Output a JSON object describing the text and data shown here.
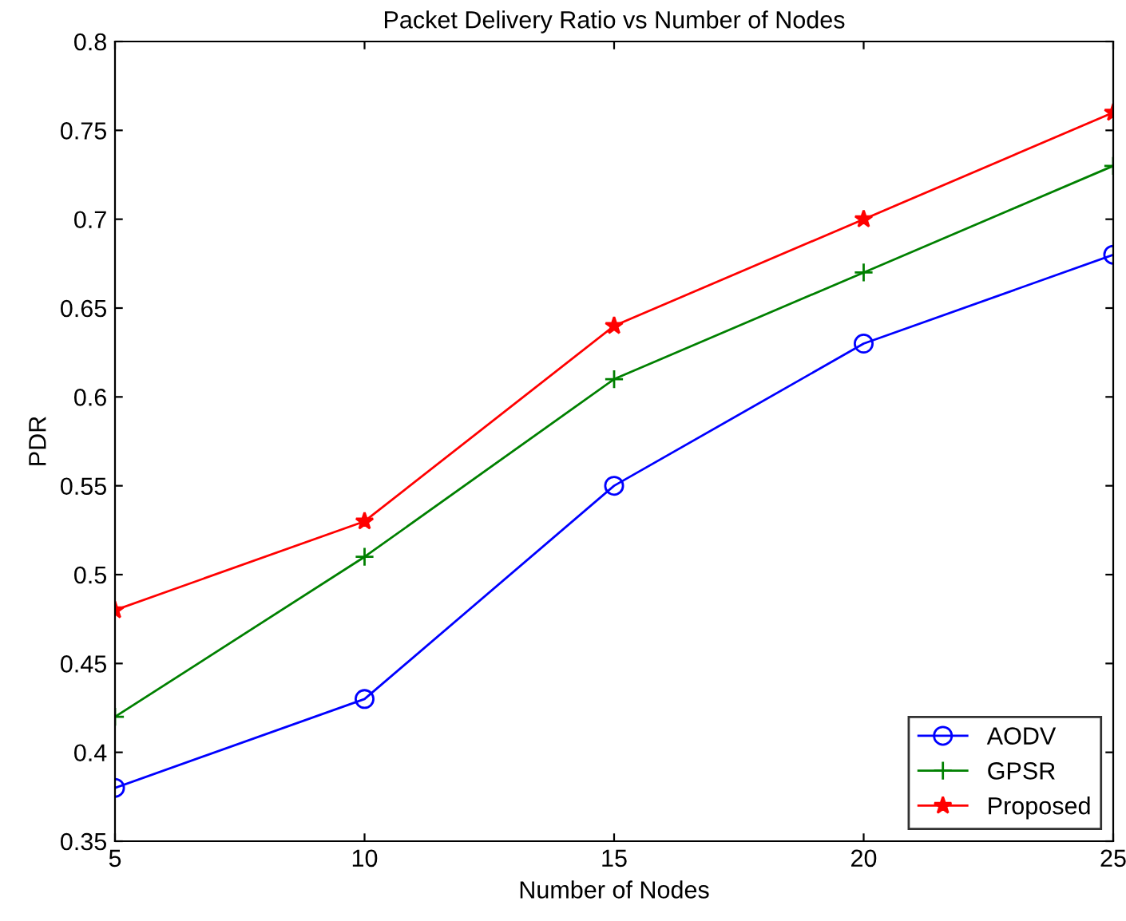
{
  "chart_data": {
    "type": "line",
    "title": "Packet Delivery Ratio vs Number of Nodes",
    "xlabel": "Number of Nodes",
    "ylabel": "PDR",
    "x": [
      5,
      10,
      15,
      20,
      25
    ],
    "series": [
      {
        "name": "AODV",
        "color": "#0000ff",
        "marker": "circle",
        "values": [
          0.38,
          0.43,
          0.55,
          0.63,
          0.68
        ]
      },
      {
        "name": "GPSR",
        "color": "#008000",
        "marker": "cross",
        "values": [
          0.42,
          0.51,
          0.61,
          0.67,
          0.73
        ]
      },
      {
        "name": "Proposed",
        "color": "#ff0000",
        "marker": "star",
        "values": [
          0.48,
          0.53,
          0.64,
          0.7,
          0.76
        ]
      }
    ],
    "xlim": [
      5,
      25
    ],
    "xticks": [
      5,
      10,
      15,
      20,
      25
    ],
    "ylim": [
      0.35,
      0.8
    ],
    "yticks": [
      0.35,
      0.4,
      0.45,
      0.5,
      0.55,
      0.6,
      0.65,
      0.7,
      0.75,
      0.8
    ],
    "grid": false,
    "legend": "bottom right",
    "line_style": "solid"
  }
}
